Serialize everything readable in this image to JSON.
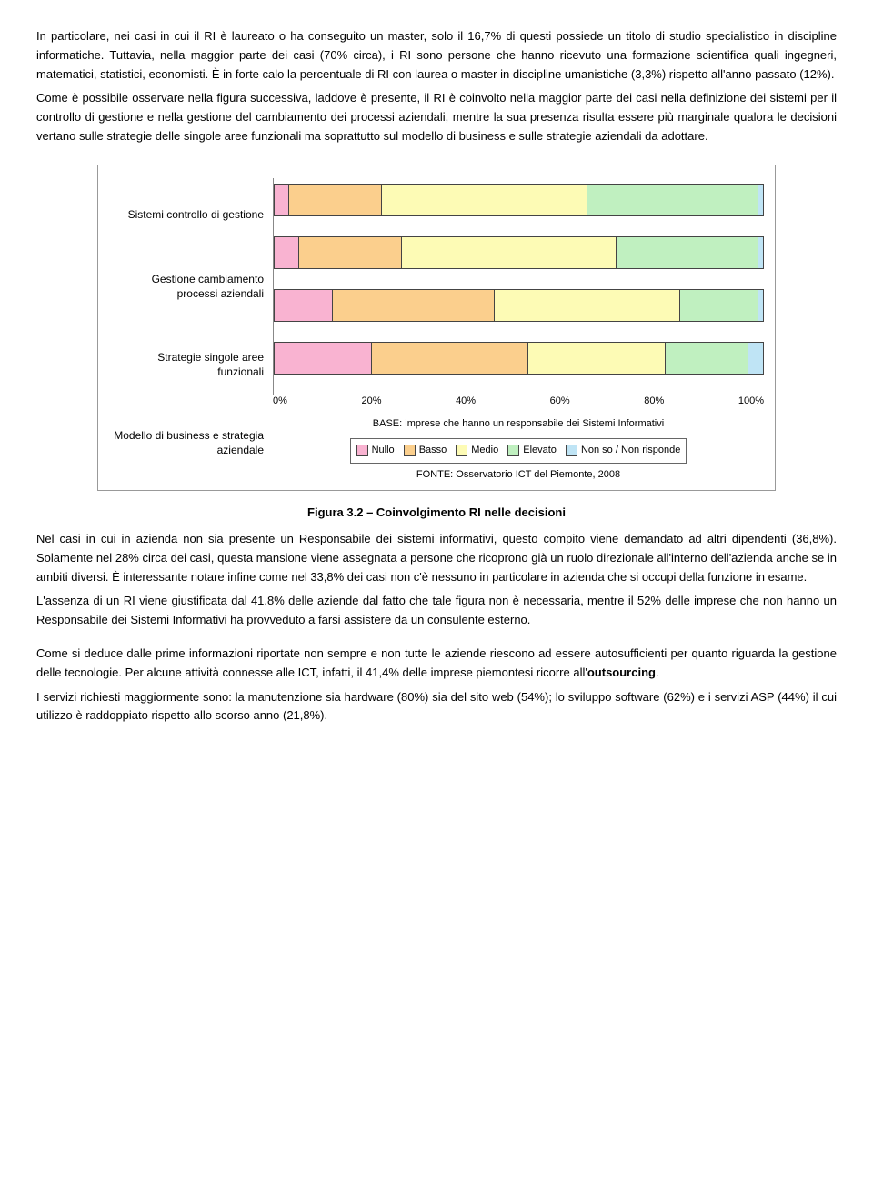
{
  "para1": "In particolare, nei casi in cui il RI è laureato o ha conseguito un master, solo il 16,7% di questi possiede un titolo di studio specialistico in discipline informatiche. Tuttavia, nella maggior parte dei casi (70% circa), i RI sono persone che hanno ricevuto una formazione scientifica quali ingegneri, matematici, statistici, economisti. È in forte calo la percentuale di RI con laurea o master in discipline umanistiche (3,3%) rispetto all'anno passato (12%).",
  "para2": "Come è possibile osservare nella figura successiva, laddove è presente, il RI è coinvolto nella maggior parte dei casi nella definizione dei sistemi per il controllo di gestione e nella gestione del cambiamento dei processi aziendali, mentre la sua presenza risulta essere più marginale qualora le decisioni vertano sulle strategie delle singole aree funzionali ma soprattutto sul modello di business e sulle strategie aziendali da adottare.",
  "chart": {
    "type": "stacked-bar-horizontal",
    "categories": [
      "Sistemi controllo di gestione",
      "Gestione cambiamento processi aziendali",
      "Strategie singole aree funzionali",
      "Modello di business e strategia aziendale"
    ],
    "series_labels": [
      "Nullo",
      "Basso",
      "Medio",
      "Elevato",
      "Non so / Non risponde"
    ],
    "series_colors": [
      "#f9b3d1",
      "#fbcf8d",
      "#fdfbb5",
      "#c0f0c0",
      "#bfe4f5"
    ],
    "values": [
      [
        3,
        19,
        42,
        35,
        1
      ],
      [
        5,
        21,
        44,
        29,
        1
      ],
      [
        12,
        33,
        38,
        16,
        1
      ],
      [
        20,
        32,
        28,
        17,
        3
      ]
    ],
    "xticks": [
      "0%",
      "20%",
      "40%",
      "60%",
      "80%",
      "100%"
    ],
    "base_caption": "BASE: imprese che hanno un responsabile dei Sistemi Informativi",
    "fonte": "FONTE: Osservatorio ICT del Piemonte, 2008",
    "border_color": "#444444",
    "background_color": "#ffffff"
  },
  "fig_title": "Figura 3.2 – Coinvolgimento RI nelle decisioni",
  "para3": "Nel casi in cui in azienda non sia presente un Responsabile dei sistemi informativi, questo compito viene demandato ad altri dipendenti (36,8%). Solamente nel 28% circa dei casi, questa mansione viene assegnata a persone che ricoprono già un ruolo direzionale all'interno dell'azienda anche se in ambiti diversi. È interessante notare infine come nel 33,8% dei casi non c'è nessuno in particolare in azienda che si occupi della funzione in esame.",
  "para4": "L'assenza di un RI viene giustificata dal 41,8% delle aziende dal fatto che tale figura non è necessaria, mentre il 52% delle imprese che non hanno un Responsabile dei Sistemi Informativi ha provveduto a farsi assistere da un consulente esterno.",
  "para5": "Come si deduce dalle prime informazioni riportate non sempre e non tutte le aziende riescono ad essere autosufficienti per quanto riguarda la gestione delle tecnologie. Per alcune attività connesse alle ICT, infatti,  il 41,4% delle imprese piemontesi ricorre all'",
  "para5_bold": "outsourcing",
  "para5_tail": ".",
  "para6": "I servizi richiesti maggiormente sono: la manutenzione sia hardware (80%) sia del sito web (54%); lo sviluppo software (62%) e i servizi ASP (44%) il cui utilizzo è raddoppiato rispetto allo scorso anno (21,8%)."
}
